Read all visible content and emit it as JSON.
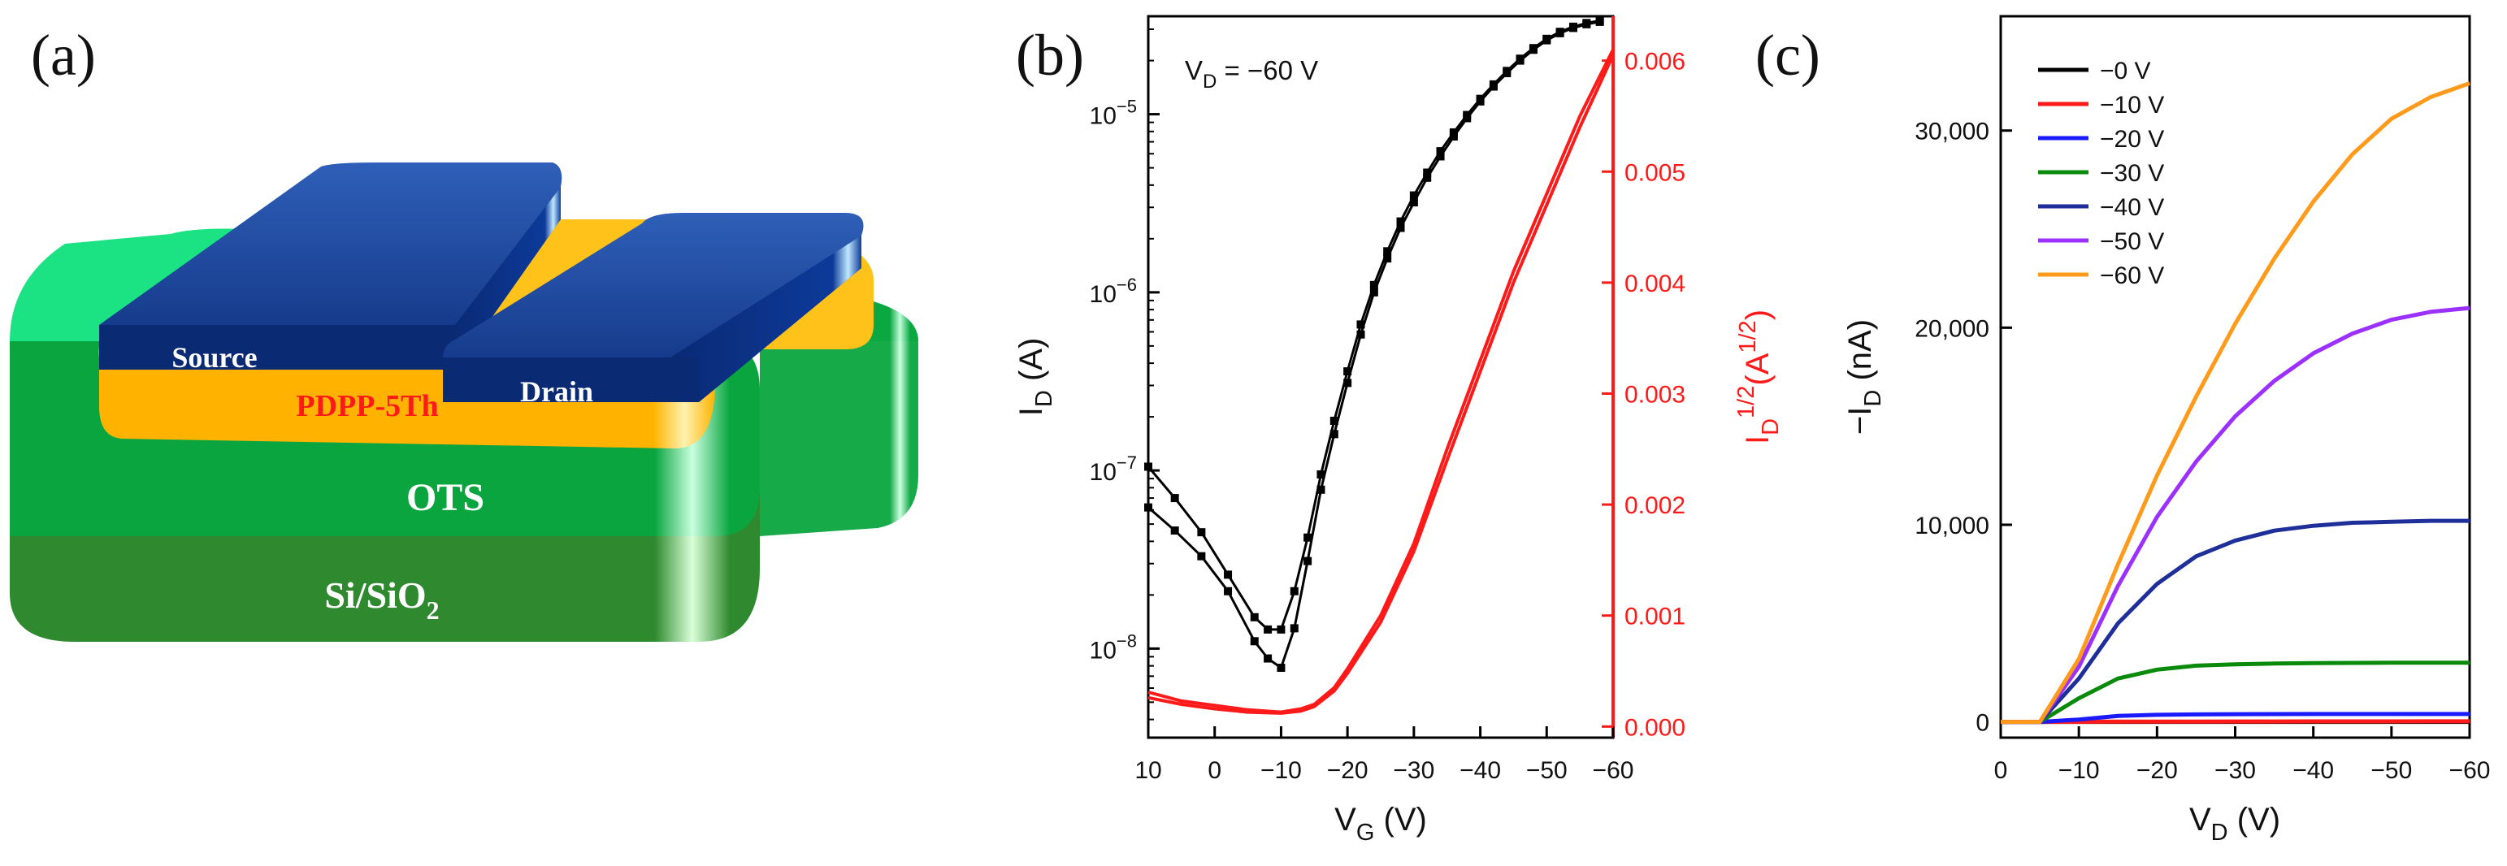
{
  "panels": {
    "a": {
      "label": "(a)",
      "layers": {
        "source": "Source",
        "drain": "Drain",
        "semiconductor": "PDPP-5Th",
        "sam": "OTS",
        "substrate_main": "Si/SiO",
        "substrate_sub": "2"
      }
    },
    "b": {
      "label": "(b)"
    },
    "c": {
      "label": "(c)"
    }
  },
  "colors": {
    "black": "#000000",
    "red": "#ff1a1a",
    "blue": "#1a1aff",
    "green": "#0a8a0a",
    "navy": "#1f2f9a",
    "violet": "#9b30ff",
    "orange": "#ff9a1a",
    "electrode": "#163b8c",
    "ots": "#10b94a",
    "sio2": "#2e8b2e",
    "pdpp": "#ffb300"
  },
  "chart_data": [
    {
      "panel": "b",
      "type": "line",
      "title": "",
      "annotation": {
        "main": "V",
        "sub": "D",
        "rest": " = −60 V"
      },
      "xlabel": {
        "main": "V",
        "sub": "G",
        "unit": " (V)"
      },
      "ylabel_left": {
        "main": "I",
        "sub": "D",
        "unit": " (A)"
      },
      "ylabel_right": {
        "main": "I",
        "sub": "D",
        "sup": "1/2",
        "unit_open": "(A",
        "unit_sup": "1/2",
        "unit_close": ")"
      },
      "xlim": [
        10,
        -60
      ],
      "x_ticks": [
        10,
        0,
        -10,
        -20,
        -30,
        -40,
        -50,
        -60
      ],
      "x_tick_labels": [
        "10",
        "0",
        "−10",
        "−20",
        "−30",
        "−40",
        "−50",
        "−60"
      ],
      "ylim_left_log10": [
        -8.5,
        -4.45
      ],
      "y_left_ticks_log10": [
        -8,
        -7,
        -6,
        -5
      ],
      "y_left_tick_labels": [
        {
          "base": "10",
          "exp": "−8"
        },
        {
          "base": "10",
          "exp": "−7"
        },
        {
          "base": "10",
          "exp": "−6"
        },
        {
          "base": "10",
          "exp": "−5"
        }
      ],
      "ylim_right": [
        -0.0001,
        0.0064
      ],
      "y_right_ticks": [
        0,
        0.001,
        0.002,
        0.003,
        0.004,
        0.005,
        0.006
      ],
      "y_right_tick_labels": [
        "0.000",
        "0.001",
        "0.002",
        "0.003",
        "0.004",
        "0.005",
        "0.006"
      ],
      "series": [
        {
          "name": "I_D forward",
          "axis": "left",
          "scale": "log",
          "color": "#000000",
          "marker": "square",
          "x": [
            10,
            6,
            2,
            -2,
            -6,
            -8,
            -10,
            -12,
            -14,
            -16,
            -18,
            -20,
            -22,
            -24,
            -26,
            -28,
            -30,
            -32,
            -34,
            -36,
            -38,
            -40,
            -42,
            -44,
            -46,
            -48,
            -50,
            -52,
            -54,
            -56,
            -58
          ],
          "y": [
            1.05e-07,
            7e-08,
            4.5e-08,
            2.6e-08,
            1.5e-08,
            1.28e-08,
            1.28e-08,
            2.1e-08,
            4.2e-08,
            9.5e-08,
            1.9e-07,
            3.6e-07,
            6.6e-07,
            1.1e-06,
            1.7e-06,
            2.5e-06,
            3.5e-06,
            4.7e-06,
            6.2e-06,
            7.9e-06,
            9.9e-06,
            1.22e-05,
            1.47e-05,
            1.75e-05,
            2.05e-05,
            2.35e-05,
            2.65e-05,
            2.9e-05,
            3.1e-05,
            3.25e-05,
            3.35e-05
          ]
        },
        {
          "name": "I_D reverse",
          "axis": "left",
          "scale": "log",
          "color": "#000000",
          "marker": "square",
          "x": [
            10,
            6,
            2,
            -2,
            -6,
            -8,
            -10,
            -12,
            -14,
            -16,
            -18,
            -20,
            -22,
            -24,
            -26,
            -28,
            -30,
            -32,
            -34,
            -36,
            -38,
            -40,
            -42,
            -44,
            -46,
            -48,
            -50,
            -52,
            -54,
            -56,
            -58
          ],
          "y": [
            6.2e-08,
            4.6e-08,
            3.3e-08,
            2.1e-08,
            1.1e-08,
            8.8e-09,
            7.8e-09,
            1.3e-08,
            3.1e-08,
            7.8e-08,
            1.6e-07,
            3.1e-07,
            5.8e-07,
            1e-06,
            1.55e-06,
            2.3e-06,
            3.2e-06,
            4.4e-06,
            5.8e-06,
            7.5e-06,
            9.5e-06,
            1.18e-05,
            1.43e-05,
            1.7e-05,
            2e-05,
            2.3e-05,
            2.6e-05,
            2.85e-05,
            3.05e-05,
            3.2e-05,
            3.3e-05
          ]
        },
        {
          "name": "sqrt(I_D) forward",
          "axis": "right",
          "scale": "linear",
          "color": "#ff1a1a",
          "x": [
            10,
            5,
            0,
            -5,
            -10,
            -13,
            -15,
            -18,
            -20,
            -25,
            -30,
            -35,
            -40,
            -45,
            -50,
            -55,
            -60
          ],
          "y": [
            0.00031,
            0.00023,
            0.00019,
            0.00015,
            0.00013,
            0.00016,
            0.0002,
            0.00035,
            0.00052,
            0.001,
            0.00165,
            0.0025,
            0.0033,
            0.0041,
            0.0048,
            0.0055,
            0.0061
          ]
        },
        {
          "name": "sqrt(I_D) reverse",
          "axis": "right",
          "scale": "linear",
          "color": "#ff1a1a",
          "x": [
            10,
            5,
            0,
            -5,
            -10,
            -13,
            -15,
            -18,
            -20,
            -25,
            -30,
            -35,
            -40,
            -45,
            -50,
            -55,
            -60
          ],
          "y": [
            0.00026,
            0.0002,
            0.00016,
            0.00013,
            0.00012,
            0.00014,
            0.00018,
            0.00032,
            0.00048,
            0.00094,
            0.00158,
            0.0024,
            0.0032,
            0.004,
            0.0047,
            0.0054,
            0.00605
          ]
        }
      ]
    },
    {
      "panel": "c",
      "type": "line",
      "title": "",
      "xlabel": {
        "main": "V",
        "sub": "D",
        "unit": " (V)"
      },
      "ylabel": {
        "prefix": "−I",
        "sub": "D",
        "unit": " (nA)"
      },
      "xlim": [
        0,
        -60
      ],
      "x_ticks": [
        0,
        -10,
        -20,
        -30,
        -40,
        -50,
        -60
      ],
      "x_tick_labels": [
        "0",
        "−10",
        "−20",
        "−30",
        "−40",
        "−50",
        "−60"
      ],
      "ylim": [
        -800,
        35800
      ],
      "y_ticks": [
        0,
        10000,
        20000,
        30000
      ],
      "y_tick_labels": [
        "0",
        "10,000",
        "20,000",
        "30,000"
      ],
      "legend": {
        "position": "top-left",
        "entries": [
          "−0 V",
          "−10 V",
          "−20 V",
          "−30 V",
          "−40 V",
          "−50 V",
          "−60 V"
        ]
      },
      "x": [
        0,
        -5,
        -10,
        -15,
        -20,
        -25,
        -30,
        -35,
        -40,
        -45,
        -50,
        -55,
        -60
      ],
      "series": [
        {
          "name": "−0 V",
          "color": "#000000",
          "values": [
            0,
            0,
            0,
            0,
            0,
            0,
            0,
            0,
            0,
            0,
            0,
            0,
            0
          ]
        },
        {
          "name": "−10 V",
          "color": "#ff1a1a",
          "values": [
            0,
            0,
            5,
            10,
            15,
            18,
            20,
            22,
            24,
            25,
            26,
            27,
            28
          ]
        },
        {
          "name": "−20 V",
          "color": "#1a1aff",
          "values": [
            0,
            0,
            120,
            300,
            360,
            380,
            390,
            395,
            400,
            400,
            400,
            400,
            400
          ]
        },
        {
          "name": "−30 V",
          "color": "#0a8a0a",
          "values": [
            0,
            0,
            1200,
            2200,
            2650,
            2850,
            2920,
            2960,
            2980,
            2990,
            3000,
            3000,
            3000
          ]
        },
        {
          "name": "−40 V",
          "color": "#1f2f9a",
          "values": [
            0,
            0,
            2200,
            5000,
            7000,
            8400,
            9200,
            9700,
            9950,
            10100,
            10150,
            10200,
            10200
          ]
        },
        {
          "name": "−50 V",
          "color": "#9b30ff",
          "values": [
            0,
            0,
            2800,
            6900,
            10400,
            13200,
            15500,
            17300,
            18700,
            19700,
            20400,
            20800,
            21000
          ]
        },
        {
          "name": "−60 V",
          "color": "#ff9a1a",
          "values": [
            0,
            0,
            3200,
            8000,
            12500,
            16500,
            20200,
            23500,
            26400,
            28800,
            30600,
            31700,
            32400
          ]
        }
      ]
    }
  ]
}
